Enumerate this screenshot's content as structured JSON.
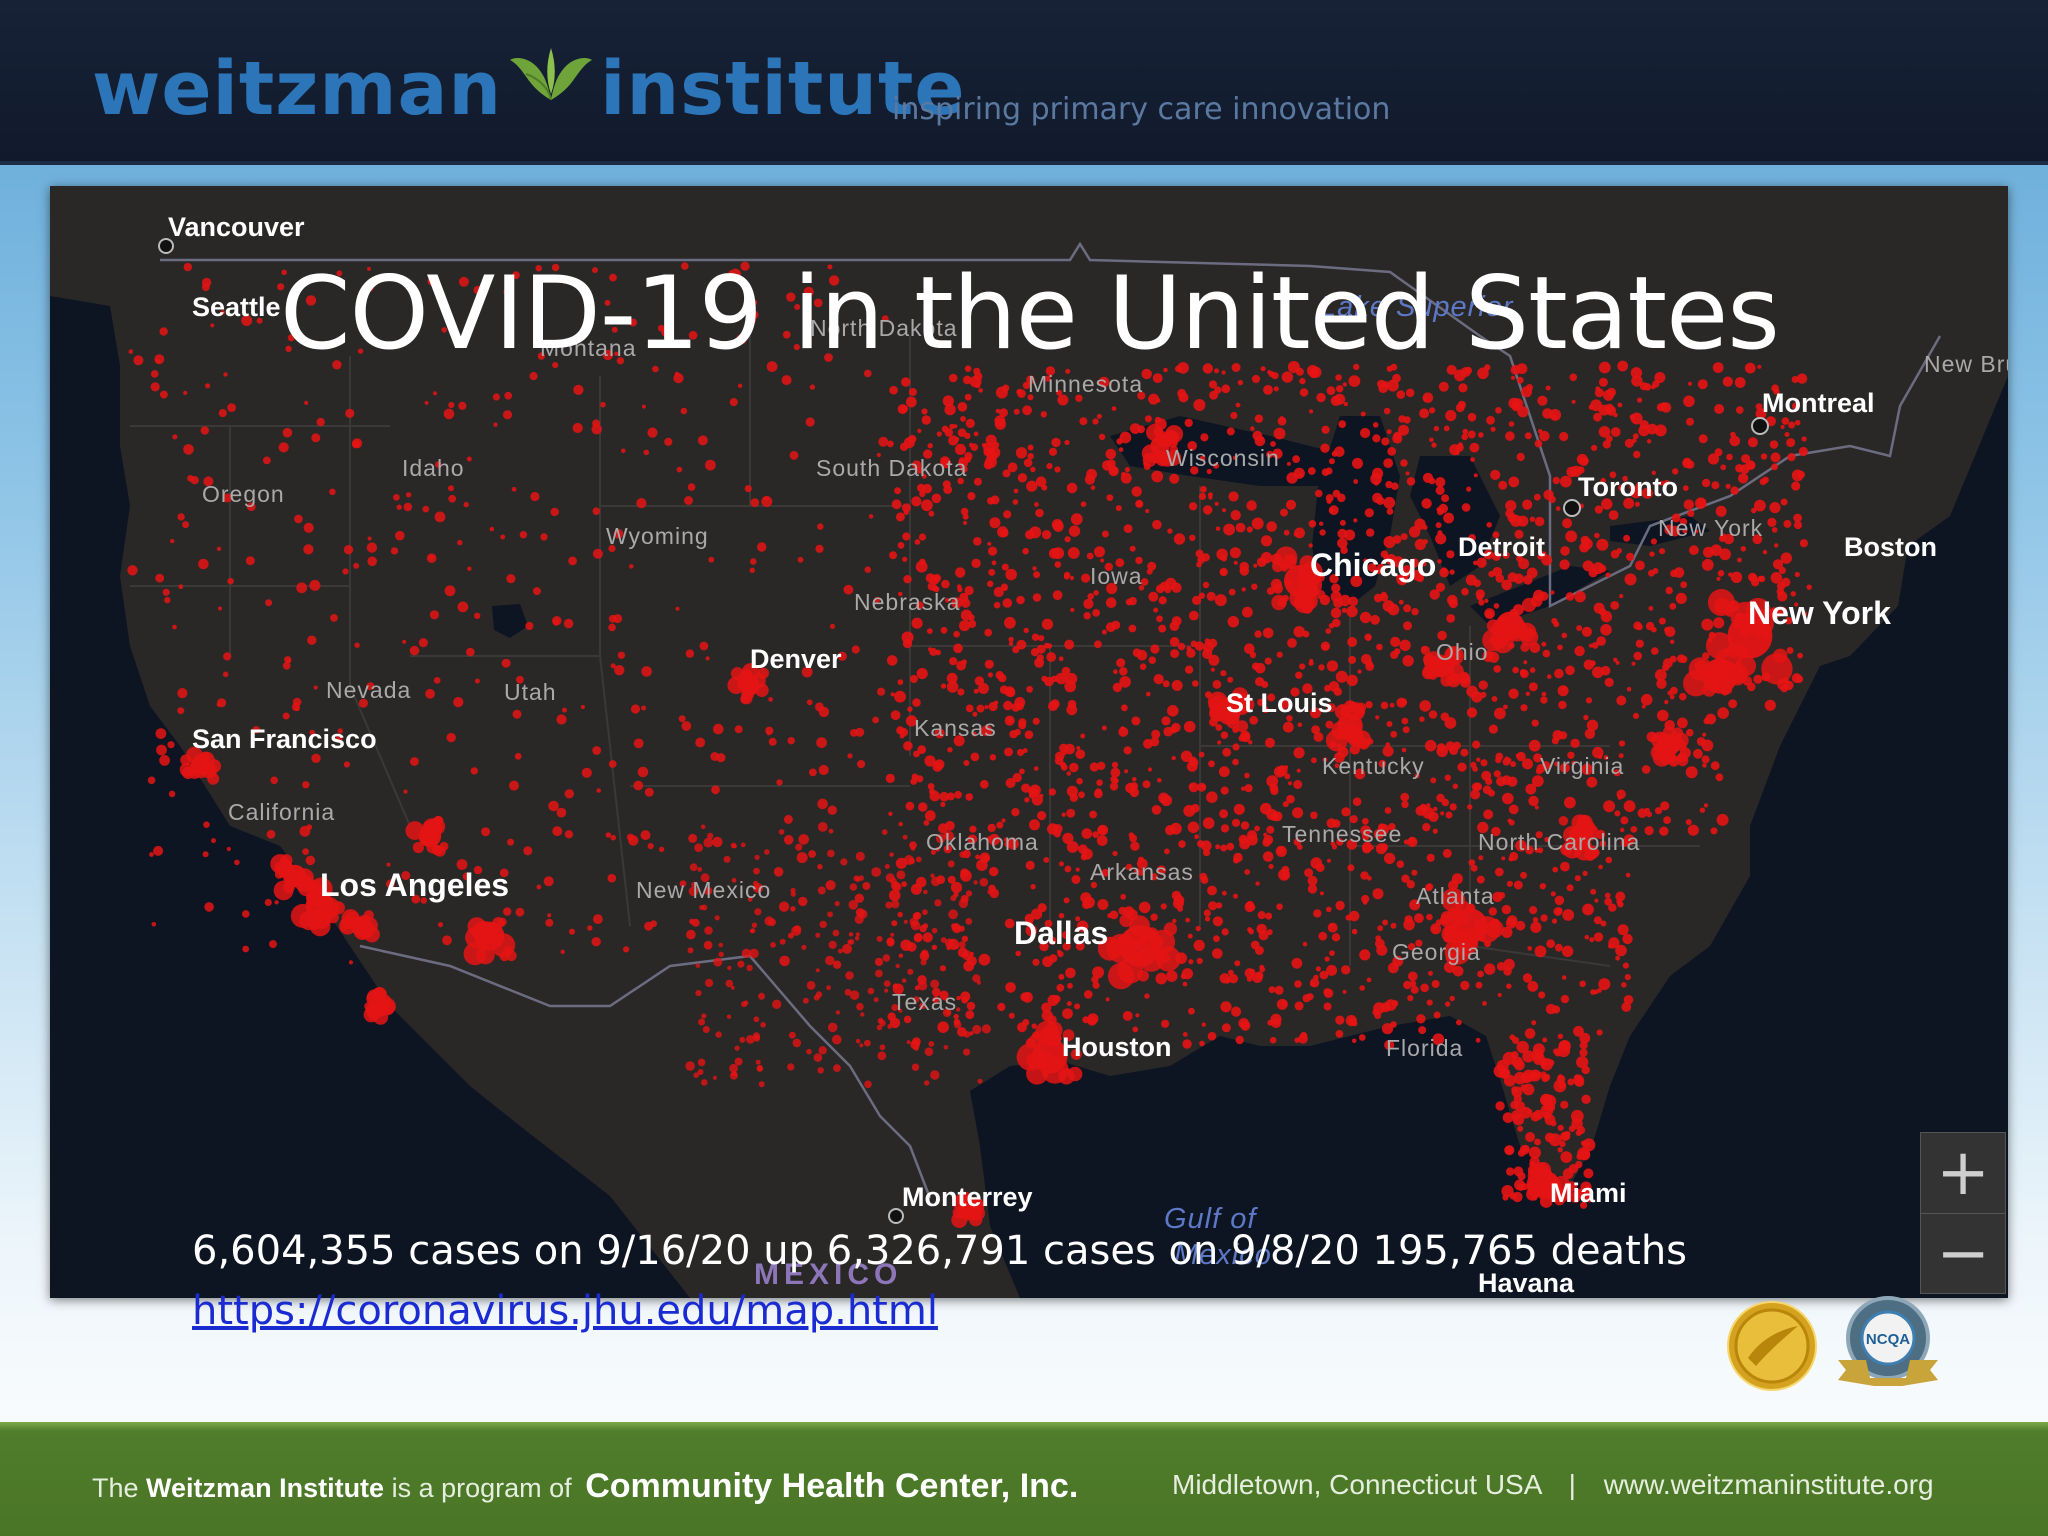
{
  "header": {
    "brand_left": "weitzman",
    "brand_right": "institute",
    "tagline": "inspiring primary care innovation",
    "logo_icon": "leaf-icon",
    "colors": {
      "brand": "#2d75b9",
      "bar": "#131d30"
    }
  },
  "slide": {
    "title": "COVID-19 in the United States",
    "stats": "6,604,355 cases on 9/16/20 up 6,326,791 cases on 9/8/20  195,765  deaths",
    "source_link": "https://coronavirus.jhu.edu/map.html"
  },
  "map": {
    "marker_color": "#e51414",
    "land_color": "#2a2727",
    "water_color": "#0d1422",
    "zoom_in": "+",
    "zoom_out": "−",
    "labels": {
      "vancouver": "Vancouver",
      "seattle": "Seattle",
      "montana": "Montana",
      "north_dakota": "North Dakota",
      "lake_superior": "Lake Superior",
      "minnesota": "Minnesota",
      "montreal": "Montreal",
      "new_brunswick": "New Bruns",
      "oregon": "Oregon",
      "idaho": "Idaho",
      "south_dakota": "South Dakota",
      "wisconsin": "Wisconsin",
      "toronto": "Toronto",
      "wyoming": "Wyoming",
      "new_york_state": "New York",
      "boston": "Boston",
      "iowa": "Iowa",
      "chicago": "Chicago",
      "detroit": "Detroit",
      "nebraska": "Nebraska",
      "new_york_city": "New York",
      "denver": "Denver",
      "ohio": "Ohio",
      "nevada": "Nevada",
      "utah": "Utah",
      "st_louis": "St Louis",
      "san_francisco": "San Francisco",
      "kansas": "Kansas",
      "kentucky": "Kentucky",
      "virginia": "Virginia",
      "california": "California",
      "tennessee": "Tennessee",
      "oklahoma": "Oklahoma",
      "north_carolina": "North Carolina",
      "arkansas": "Arkansas",
      "los_angeles": "Los Angeles",
      "new_mexico": "New Mexico",
      "atlanta": "Atlanta",
      "dallas": "Dallas",
      "georgia": "Georgia",
      "texas": "Texas",
      "houston": "Houston",
      "florida": "Florida",
      "monterrey": "Monterrey",
      "miami": "Miami",
      "gulf_of_mexico_1": "Gulf of",
      "gulf_of_mexico_2": "Mexico",
      "mexico": "MEXICO",
      "havana": "Havana"
    }
  },
  "seals": {
    "gold_seal_icon": "gold-seal-icon",
    "ncqa_seal_icon": "ncqa-seal-icon",
    "ncqa_text": "NCQA"
  },
  "footer": {
    "prefix": "The",
    "org": "Weitzman Institute",
    "middle": "is a program of",
    "parent": "Community Health Center, Inc.",
    "location": "Middletown, Connecticut USA",
    "separator": "|",
    "website": "www.weitzmaninstitute.org"
  }
}
